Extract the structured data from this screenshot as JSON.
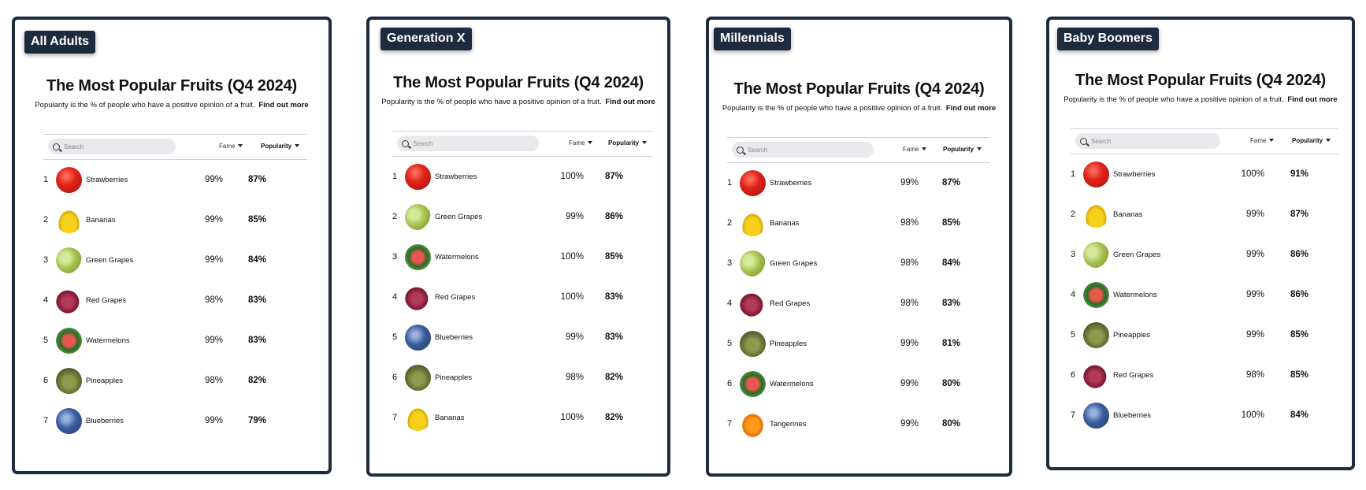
{
  "shared": {
    "title": "The Most Popular Fruits (Q4 2024)",
    "subtitle": "Popularity is the % of people who have a positive opinion of a fruit.",
    "find_out_more": "Find out more",
    "search_placeholder": "Search",
    "col_fame": "Fame",
    "col_popularity": "Popularity"
  },
  "panels": [
    {
      "badge": "All Adults",
      "rows": [
        {
          "rank": "1",
          "fruit": "Strawberries",
          "icon": "strawberries",
          "fame": "99%",
          "popularity": "87%"
        },
        {
          "rank": "2",
          "fruit": "Bananas",
          "icon": "bananas",
          "fame": "99%",
          "popularity": "85%"
        },
        {
          "rank": "3",
          "fruit": "Green Grapes",
          "icon": "green-grapes",
          "fame": "99%",
          "popularity": "84%"
        },
        {
          "rank": "4",
          "fruit": "Red Grapes",
          "icon": "red-grapes",
          "fame": "98%",
          "popularity": "83%"
        },
        {
          "rank": "5",
          "fruit": "Watermelons",
          "icon": "watermelons",
          "fame": "99%",
          "popularity": "83%"
        },
        {
          "rank": "6",
          "fruit": "Pineapples",
          "icon": "pineapples",
          "fame": "98%",
          "popularity": "82%"
        },
        {
          "rank": "7",
          "fruit": "Blueberries",
          "icon": "blueberries",
          "fame": "99%",
          "popularity": "79%"
        }
      ]
    },
    {
      "badge": "Generation X",
      "rows": [
        {
          "rank": "1",
          "fruit": "Strawberries",
          "icon": "strawberries",
          "fame": "100%",
          "popularity": "87%"
        },
        {
          "rank": "2",
          "fruit": "Green Grapes",
          "icon": "green-grapes",
          "fame": "99%",
          "popularity": "86%"
        },
        {
          "rank": "3",
          "fruit": "Watermelons",
          "icon": "watermelons",
          "fame": "100%",
          "popularity": "85%"
        },
        {
          "rank": "4",
          "fruit": "Red Grapes",
          "icon": "red-grapes",
          "fame": "100%",
          "popularity": "83%"
        },
        {
          "rank": "5",
          "fruit": "Blueberries",
          "icon": "blueberries",
          "fame": "99%",
          "popularity": "83%"
        },
        {
          "rank": "6",
          "fruit": "Pineapples",
          "icon": "pineapples",
          "fame": "98%",
          "popularity": "82%"
        },
        {
          "rank": "7",
          "fruit": "Bananas",
          "icon": "bananas",
          "fame": "100%",
          "popularity": "82%"
        }
      ]
    },
    {
      "badge": "Millennials",
      "rows": [
        {
          "rank": "1",
          "fruit": "Strawberries",
          "icon": "strawberries",
          "fame": "99%",
          "popularity": "87%"
        },
        {
          "rank": "2",
          "fruit": "Bananas",
          "icon": "bananas",
          "fame": "98%",
          "popularity": "85%"
        },
        {
          "rank": "3",
          "fruit": "Green Grapes",
          "icon": "green-grapes",
          "fame": "98%",
          "popularity": "84%"
        },
        {
          "rank": "4",
          "fruit": "Red Grapes",
          "icon": "red-grapes",
          "fame": "98%",
          "popularity": "83%"
        },
        {
          "rank": "5",
          "fruit": "Pineapples",
          "icon": "pineapples",
          "fame": "99%",
          "popularity": "81%"
        },
        {
          "rank": "6",
          "fruit": "Watermelons",
          "icon": "watermelons",
          "fame": "99%",
          "popularity": "80%"
        },
        {
          "rank": "7",
          "fruit": "Tangerines",
          "icon": "tangerines",
          "fame": "99%",
          "popularity": "80%"
        }
      ]
    },
    {
      "badge": "Baby Boomers",
      "rows": [
        {
          "rank": "1",
          "fruit": "Strawberries",
          "icon": "strawberries",
          "fame": "100%",
          "popularity": "91%"
        },
        {
          "rank": "2",
          "fruit": "Bananas",
          "icon": "bananas",
          "fame": "99%",
          "popularity": "87%"
        },
        {
          "rank": "3",
          "fruit": "Green Grapes",
          "icon": "green-grapes",
          "fame": "99%",
          "popularity": "86%"
        },
        {
          "rank": "4",
          "fruit": "Watermelons",
          "icon": "watermelons",
          "fame": "99%",
          "popularity": "86%"
        },
        {
          "rank": "5",
          "fruit": "Pineapples",
          "icon": "pineapples",
          "fame": "99%",
          "popularity": "85%"
        },
        {
          "rank": "6",
          "fruit": "Red Grapes",
          "icon": "red-grapes",
          "fame": "98%",
          "popularity": "85%"
        },
        {
          "rank": "7",
          "fruit": "Blueberries",
          "icon": "blueberries",
          "fame": "100%",
          "popularity": "84%"
        }
      ]
    }
  ]
}
